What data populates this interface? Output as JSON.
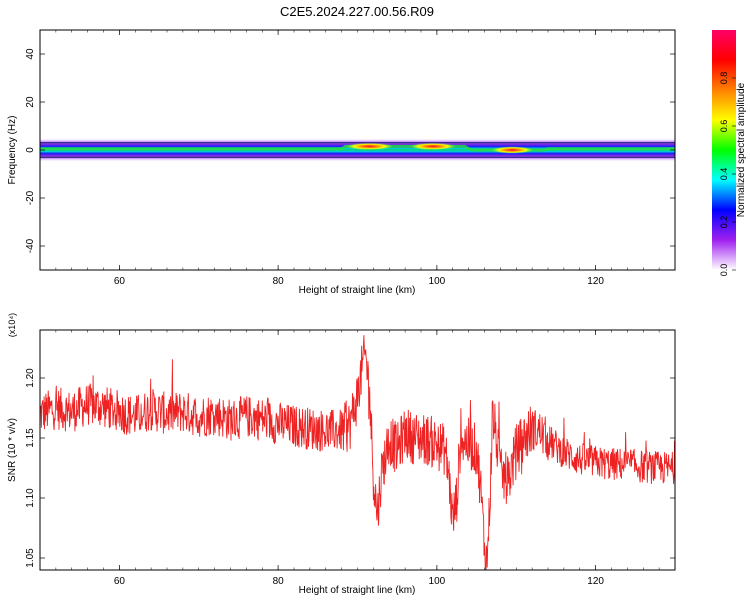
{
  "title": "C2E5.2024.227.00.56.R09",
  "chart_data": [
    {
      "type": "heatmap",
      "xlabel": "Height of straight line (km)",
      "ylabel": "Frequency (Hz)",
      "xlim": [
        50,
        130
      ],
      "ylim": [
        -50,
        50
      ],
      "xticks": [
        60,
        80,
        100,
        120
      ],
      "yticks": [
        -40,
        -20,
        0,
        20,
        40
      ],
      "band_halfwidth_hz": [
        3,
        5
      ],
      "hotspots": [
        {
          "x": 91.5,
          "y": 1.5,
          "amplitude": 1.0
        },
        {
          "x": 99.5,
          "y": 1.5,
          "amplitude": 0.95
        },
        {
          "x": 109.5,
          "y": 0.0,
          "amplitude": 0.85
        }
      ],
      "colorbar": {
        "label": "Normalized spectral amplitude",
        "range": [
          0.0,
          1.0
        ],
        "ticks": [
          "0.0",
          "0.2",
          "0.4",
          "0.6",
          "0.8"
        ],
        "colors": [
          "#ffffff",
          "#a020f0",
          "#0000ff",
          "#00ffff",
          "#00ff00",
          "#ffff00",
          "#ff8000",
          "#ff0000",
          "#ff0066"
        ]
      }
    },
    {
      "type": "line",
      "xlabel": "Height of straight line (km)",
      "ylabel": "SNR (10 * v/v)",
      "y_multiplier": "(x10⁴)",
      "xlim": [
        50,
        130
      ],
      "ylim": [
        1.04,
        1.24
      ],
      "xticks": [
        60,
        80,
        100,
        120
      ],
      "yticks": [
        1.05,
        1.1,
        1.15,
        1.2
      ],
      "ytick_labels": [
        "1.05",
        "1.10",
        "1.15",
        "1.20"
      ],
      "series": [
        {
          "color": "#ee2222",
          "x": [
            50,
            52,
            54,
            56,
            58,
            60,
            62,
            64,
            66,
            68,
            70,
            72,
            74,
            76,
            78,
            80,
            82,
            84,
            86,
            88,
            89,
            90,
            90.5,
            91,
            91.5,
            92,
            92.5,
            93,
            94,
            95,
            96,
            97,
            98,
            99,
            100,
            101,
            101.5,
            102,
            102.5,
            103,
            104,
            105,
            105.5,
            106,
            106.3,
            106.7,
            107,
            107.5,
            108,
            109,
            110,
            111,
            112,
            113,
            114,
            116,
            118,
            120,
            122,
            124,
            126,
            128,
            130
          ],
          "y": [
            1.17,
            1.175,
            1.172,
            1.178,
            1.176,
            1.172,
            1.168,
            1.174,
            1.17,
            1.172,
            1.168,
            1.17,
            1.165,
            1.168,
            1.166,
            1.162,
            1.16,
            1.158,
            1.156,
            1.156,
            1.16,
            1.185,
            1.205,
            1.22,
            1.19,
            1.12,
            1.085,
            1.12,
            1.15,
            1.14,
            1.155,
            1.15,
            1.15,
            1.148,
            1.145,
            1.14,
            1.12,
            1.08,
            1.1,
            1.15,
            1.145,
            1.14,
            1.11,
            1.06,
            1.045,
            1.1,
            1.17,
            1.15,
            1.12,
            1.115,
            1.14,
            1.15,
            1.158,
            1.155,
            1.148,
            1.138,
            1.132,
            1.13,
            1.128,
            1.128,
            1.126,
            1.125,
            1.125
          ]
        }
      ]
    }
  ]
}
